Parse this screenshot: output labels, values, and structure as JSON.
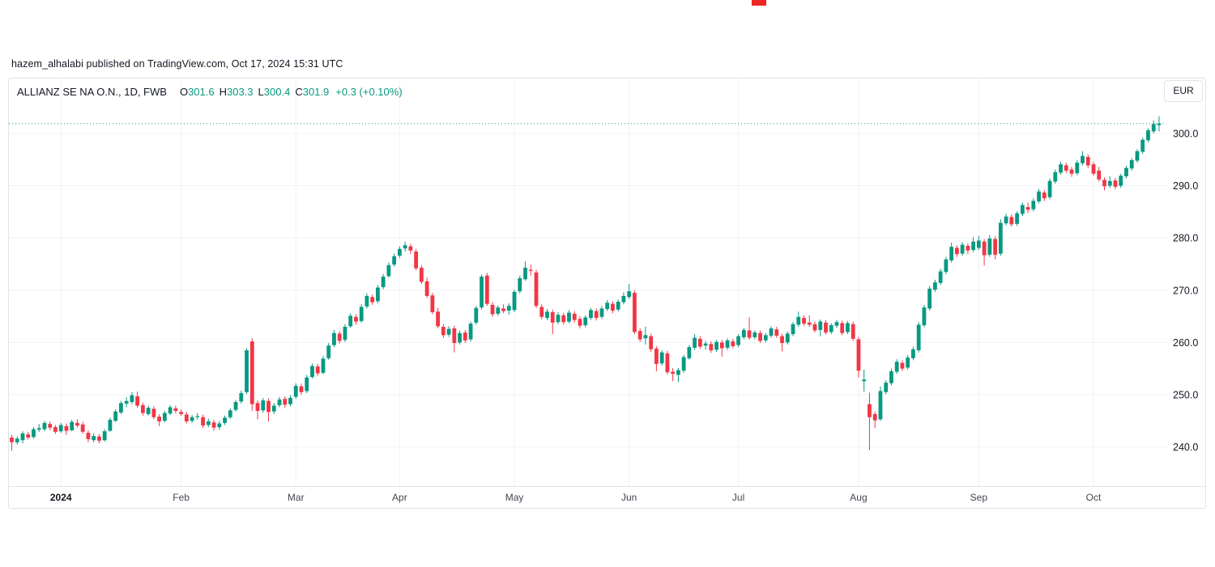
{
  "attribution": "hazem_alhalabi published on TradingView.com, Oct 17, 2024 15:31 UTC",
  "legend": {
    "symbol": "ALLIANZ SE NA O.N., 1D, FWB",
    "open_label": "O",
    "open": "301.6",
    "high_label": "H",
    "high": "303.3",
    "low_label": "L",
    "low": "300.4",
    "close_label": "C",
    "close": "301.9",
    "change": "+0.3 (+0.10%)"
  },
  "currency_button": "EUR",
  "colors": {
    "up": "#089981",
    "down": "#f23645",
    "grid": "#f0f3fa",
    "border": "#e0e3eb",
    "text": "#131722",
    "muted": "#434651",
    "current_price_line": "#089981",
    "top_marker": "#ee2724"
  },
  "chart_data": {
    "type": "candlestick",
    "title": "ALLIANZ SE NA O.N., 1D, FWB",
    "interval": "1D",
    "exchange": "FWB",
    "currency": "EUR",
    "current_price": 301.9,
    "last_ohlc": {
      "open": 301.6,
      "high": 303.3,
      "low": 300.4,
      "close": 301.9
    },
    "price_axis_ticks": [
      300,
      290,
      280,
      270,
      260,
      250,
      240
    ],
    "price_axis_labels": [
      "300.0",
      "290.0",
      "280.0",
      "270.0",
      "260.0",
      "250.0",
      "240.0"
    ],
    "ylim": [
      236,
      305
    ],
    "grid": true,
    "time_axis": [
      {
        "label": "2024",
        "index": 9,
        "bold": true
      },
      {
        "label": "Feb",
        "index": 31
      },
      {
        "label": "Mar",
        "index": 52
      },
      {
        "label": "Apr",
        "index": 71
      },
      {
        "label": "May",
        "index": 92
      },
      {
        "label": "Jun",
        "index": 113
      },
      {
        "label": "Jul",
        "index": 133
      },
      {
        "label": "Aug",
        "index": 155
      },
      {
        "label": "Sep",
        "index": 177
      },
      {
        "label": "Oct",
        "index": 198
      }
    ],
    "candles_ohlc_format": [
      "open",
      "high",
      "low",
      "close"
    ],
    "candles": [
      [
        241.8,
        242.3,
        239.3,
        240.9
      ],
      [
        240.9,
        242.0,
        240.5,
        241.6
      ],
      [
        241.3,
        243.0,
        240.7,
        242.6
      ],
      [
        242.4,
        242.9,
        241.4,
        241.8
      ],
      [
        241.9,
        243.8,
        241.6,
        243.4
      ],
      [
        243.3,
        244.4,
        242.9,
        243.6
      ],
      [
        243.4,
        245.0,
        243.0,
        244.6
      ],
      [
        244.4,
        244.9,
        243.2,
        243.7
      ],
      [
        243.8,
        244.2,
        242.5,
        242.9
      ],
      [
        243.0,
        244.6,
        242.7,
        244.2
      ],
      [
        244.0,
        244.5,
        242.3,
        243.1
      ],
      [
        243.2,
        245.2,
        243.0,
        244.8
      ],
      [
        244.6,
        245.3,
        243.7,
        244.1
      ],
      [
        244.3,
        244.8,
        242.5,
        242.9
      ],
      [
        242.7,
        243.2,
        240.9,
        241.5
      ],
      [
        241.3,
        242.6,
        240.9,
        242.1
      ],
      [
        242.0,
        242.5,
        240.7,
        241.2
      ],
      [
        241.3,
        243.4,
        241.0,
        243.0
      ],
      [
        243.1,
        245.6,
        242.9,
        245.2
      ],
      [
        245.0,
        247.2,
        244.8,
        246.8
      ],
      [
        246.6,
        248.8,
        246.3,
        248.4
      ],
      [
        248.3,
        249.5,
        247.6,
        248.8
      ],
      [
        248.6,
        250.5,
        248.2,
        249.9
      ],
      [
        249.7,
        250.6,
        247.5,
        247.9
      ],
      [
        248.0,
        248.5,
        246.0,
        246.5
      ],
      [
        246.3,
        247.9,
        246.0,
        247.5
      ],
      [
        247.3,
        247.8,
        245.3,
        245.7
      ],
      [
        245.8,
        246.3,
        244.0,
        244.9
      ],
      [
        245.0,
        246.9,
        244.7,
        246.5
      ],
      [
        246.4,
        248.0,
        246.1,
        247.6
      ],
      [
        247.4,
        247.9,
        246.4,
        246.9
      ],
      [
        246.7,
        247.2,
        245.9,
        246.3
      ],
      [
        246.2,
        246.7,
        244.5,
        244.9
      ],
      [
        245.0,
        246.1,
        244.6,
        245.7
      ],
      [
        245.8,
        246.5,
        245.2,
        245.9
      ],
      [
        245.7,
        246.2,
        243.6,
        244.1
      ],
      [
        244.2,
        245.4,
        243.8,
        244.9
      ],
      [
        244.7,
        245.2,
        243.1,
        243.7
      ],
      [
        243.8,
        245.0,
        243.3,
        244.5
      ],
      [
        244.6,
        246.0,
        244.2,
        245.6
      ],
      [
        245.7,
        247.4,
        245.4,
        247.0
      ],
      [
        247.1,
        249.0,
        246.8,
        248.6
      ],
      [
        248.7,
        250.8,
        248.3,
        250.3
      ],
      [
        250.5,
        258.9,
        250.1,
        258.5
      ],
      [
        260.2,
        260.8,
        246.9,
        248.2
      ],
      [
        248.4,
        248.9,
        245.3,
        246.9
      ],
      [
        247.0,
        249.4,
        246.6,
        248.9
      ],
      [
        248.8,
        249.3,
        244.9,
        246.7
      ],
      [
        246.8,
        248.4,
        246.3,
        247.9
      ],
      [
        248.0,
        249.6,
        247.6,
        249.1
      ],
      [
        249.2,
        249.7,
        247.5,
        248.1
      ],
      [
        248.2,
        249.9,
        247.8,
        249.4
      ],
      [
        249.6,
        252.2,
        249.2,
        251.7
      ],
      [
        251.6,
        252.1,
        250.0,
        250.5
      ],
      [
        250.7,
        253.8,
        250.3,
        253.3
      ],
      [
        253.4,
        256.0,
        253.1,
        255.5
      ],
      [
        255.4,
        255.9,
        253.6,
        254.1
      ],
      [
        254.2,
        257.4,
        253.9,
        256.9
      ],
      [
        257.0,
        259.9,
        256.7,
        259.4
      ],
      [
        259.5,
        262.4,
        259.1,
        261.8
      ],
      [
        261.7,
        262.2,
        259.8,
        260.3
      ],
      [
        260.5,
        263.5,
        260.1,
        263.0
      ],
      [
        263.1,
        265.6,
        262.8,
        265.1
      ],
      [
        264.9,
        265.4,
        263.4,
        264.0
      ],
      [
        264.1,
        267.3,
        263.8,
        266.8
      ],
      [
        266.9,
        269.4,
        266.5,
        268.9
      ],
      [
        268.7,
        269.2,
        267.2,
        267.7
      ],
      [
        267.9,
        271.0,
        267.5,
        270.5
      ],
      [
        270.6,
        273.1,
        270.2,
        272.6
      ],
      [
        272.7,
        275.3,
        272.4,
        274.8
      ],
      [
        274.9,
        277.0,
        274.5,
        276.5
      ],
      [
        276.6,
        278.4,
        276.2,
        277.9
      ],
      [
        278.0,
        279.3,
        277.4,
        278.6
      ],
      [
        278.4,
        278.9,
        276.9,
        277.6
      ],
      [
        277.4,
        277.9,
        273.8,
        274.2
      ],
      [
        274.3,
        274.8,
        271.2,
        271.6
      ],
      [
        271.7,
        272.4,
        268.5,
        268.9
      ],
      [
        269.0,
        269.5,
        265.4,
        265.8
      ],
      [
        265.9,
        266.6,
        262.7,
        263.1
      ],
      [
        263.0,
        263.5,
        260.9,
        261.4
      ],
      [
        261.5,
        263.1,
        261.1,
        262.6
      ],
      [
        262.7,
        263.2,
        258.1,
        259.9
      ],
      [
        260.0,
        262.3,
        259.6,
        261.8
      ],
      [
        261.9,
        262.4,
        259.9,
        260.4
      ],
      [
        260.6,
        264.0,
        260.2,
        263.6
      ],
      [
        263.8,
        267.0,
        263.4,
        266.6
      ],
      [
        266.7,
        273.0,
        266.3,
        272.6
      ],
      [
        272.8,
        273.3,
        267.0,
        267.4
      ],
      [
        267.2,
        267.7,
        264.9,
        265.4
      ],
      [
        265.5,
        267.1,
        265.1,
        266.7
      ],
      [
        266.5,
        267.3,
        265.6,
        266.0
      ],
      [
        266.1,
        267.5,
        265.3,
        267.0
      ],
      [
        266.2,
        270.1,
        265.8,
        269.7
      ],
      [
        269.8,
        272.8,
        269.4,
        272.3
      ],
      [
        272.1,
        275.5,
        271.8,
        274.3
      ],
      [
        273.9,
        274.9,
        272.8,
        273.7
      ],
      [
        273.4,
        273.9,
        266.6,
        267.0
      ],
      [
        266.8,
        267.3,
        264.4,
        264.9
      ],
      [
        264.7,
        266.4,
        264.3,
        265.9
      ],
      [
        265.8,
        266.3,
        261.6,
        263.8
      ],
      [
        263.9,
        265.8,
        263.5,
        265.3
      ],
      [
        265.2,
        265.7,
        263.4,
        263.9
      ],
      [
        264.0,
        266.2,
        263.7,
        265.7
      ],
      [
        265.5,
        266.0,
        263.8,
        264.3
      ],
      [
        264.5,
        265.0,
        262.7,
        263.2
      ],
      [
        263.3,
        265.2,
        262.9,
        264.8
      ],
      [
        264.7,
        266.6,
        264.3,
        266.2
      ],
      [
        266.0,
        266.5,
        264.2,
        264.7
      ],
      [
        264.9,
        267.0,
        264.5,
        266.5
      ],
      [
        266.4,
        268.1,
        266.0,
        267.6
      ],
      [
        267.4,
        267.9,
        265.6,
        266.1
      ],
      [
        266.3,
        268.2,
        265.9,
        267.8
      ],
      [
        267.7,
        269.6,
        267.3,
        268.9
      ],
      [
        268.7,
        271.2,
        268.3,
        269.8
      ],
      [
        269.5,
        270.0,
        261.6,
        262.0
      ],
      [
        262.2,
        262.7,
        260.1,
        260.6
      ],
      [
        260.8,
        263.0,
        259.6,
        261.4
      ],
      [
        261.2,
        261.7,
        258.2,
        258.7
      ],
      [
        258.8,
        259.3,
        254.5,
        255.9
      ],
      [
        256.0,
        258.5,
        255.6,
        258.1
      ],
      [
        257.9,
        258.4,
        253.9,
        254.3
      ],
      [
        254.4,
        255.1,
        252.6,
        254.0
      ],
      [
        253.8,
        255.1,
        252.4,
        254.7
      ],
      [
        254.6,
        257.6,
        254.2,
        257.2
      ],
      [
        257.0,
        259.5,
        256.7,
        259.1
      ],
      [
        259.0,
        261.6,
        258.6,
        260.9
      ],
      [
        260.7,
        261.2,
        258.8,
        259.2
      ],
      [
        259.4,
        260.3,
        258.6,
        259.8
      ],
      [
        259.7,
        260.2,
        258.0,
        258.5
      ],
      [
        258.6,
        260.5,
        258.2,
        260.1
      ],
      [
        260.0,
        260.5,
        257.3,
        258.9
      ],
      [
        259.0,
        260.8,
        258.6,
        260.4
      ],
      [
        260.2,
        260.7,
        258.9,
        259.3
      ],
      [
        259.5,
        261.6,
        259.1,
        261.2
      ],
      [
        261.0,
        262.8,
        260.6,
        262.4
      ],
      [
        262.3,
        264.8,
        260.5,
        260.9
      ],
      [
        261.0,
        262.3,
        260.6,
        261.9
      ],
      [
        261.8,
        262.3,
        259.9,
        260.3
      ],
      [
        260.4,
        261.8,
        260.0,
        261.4
      ],
      [
        261.3,
        263.1,
        260.9,
        262.7
      ],
      [
        262.5,
        263.0,
        260.9,
        261.3
      ],
      [
        261.2,
        261.7,
        258.3,
        259.9
      ],
      [
        260.0,
        262.1,
        259.6,
        261.7
      ],
      [
        261.6,
        263.9,
        261.2,
        263.5
      ],
      [
        263.4,
        265.9,
        263.0,
        264.9
      ],
      [
        264.7,
        265.2,
        263.2,
        263.6
      ],
      [
        263.8,
        265.2,
        263.0,
        263.4
      ],
      [
        263.5,
        264.0,
        261.9,
        262.3
      ],
      [
        262.4,
        264.4,
        261.2,
        264.0
      ],
      [
        263.8,
        264.3,
        261.5,
        261.9
      ],
      [
        262.0,
        263.7,
        261.6,
        263.3
      ],
      [
        263.2,
        264.3,
        262.8,
        263.9
      ],
      [
        263.7,
        264.2,
        261.4,
        261.8
      ],
      [
        262.0,
        264.1,
        261.6,
        263.7
      ],
      [
        263.5,
        264.0,
        260.3,
        260.7
      ],
      [
        260.6,
        261.1,
        253.3,
        254.6
      ],
      [
        252.6,
        254.8,
        250.6,
        252.9
      ],
      [
        248.2,
        250.4,
        239.4,
        245.7
      ],
      [
        246.3,
        246.8,
        243.6,
        245.1
      ],
      [
        245.3,
        251.6,
        245.0,
        250.7
      ],
      [
        250.5,
        252.8,
        250.1,
        252.3
      ],
      [
        252.2,
        255.0,
        251.8,
        254.5
      ],
      [
        254.4,
        256.8,
        254.0,
        256.3
      ],
      [
        256.1,
        256.6,
        254.5,
        255.0
      ],
      [
        255.2,
        257.6,
        254.8,
        257.1
      ],
      [
        257.0,
        259.2,
        256.6,
        258.7
      ],
      [
        258.5,
        263.9,
        258.1,
        263.4
      ],
      [
        263.3,
        267.2,
        262.9,
        266.7
      ],
      [
        266.5,
        270.8,
        266.1,
        270.3
      ],
      [
        270.1,
        272.0,
        269.7,
        271.5
      ],
      [
        271.4,
        274.1,
        271.0,
        273.6
      ],
      [
        273.5,
        276.4,
        273.1,
        275.9
      ],
      [
        275.7,
        279.1,
        275.3,
        278.3
      ],
      [
        278.1,
        278.6,
        276.4,
        276.9
      ],
      [
        277.0,
        279.2,
        276.6,
        278.7
      ],
      [
        278.5,
        279.0,
        276.9,
        277.6
      ],
      [
        277.7,
        280.2,
        277.3,
        279.3
      ],
      [
        278.1,
        280.4,
        277.7,
        279.5
      ],
      [
        279.3,
        279.8,
        274.7,
        276.7
      ],
      [
        276.8,
        280.6,
        276.4,
        279.9
      ],
      [
        279.8,
        280.3,
        275.9,
        276.8
      ],
      [
        277.0,
        283.6,
        276.6,
        282.9
      ],
      [
        282.8,
        284.6,
        282.4,
        284.1
      ],
      [
        284.0,
        284.5,
        282.2,
        282.6
      ],
      [
        282.7,
        285.1,
        282.3,
        284.7
      ],
      [
        284.6,
        286.8,
        284.2,
        286.3
      ],
      [
        285.9,
        286.8,
        284.8,
        285.4
      ],
      [
        285.5,
        287.6,
        285.1,
        287.1
      ],
      [
        287.0,
        289.4,
        286.6,
        288.9
      ],
      [
        288.7,
        289.2,
        287.1,
        287.6
      ],
      [
        287.8,
        291.4,
        287.4,
        290.9
      ],
      [
        290.8,
        293.1,
        290.4,
        292.6
      ],
      [
        292.5,
        294.6,
        292.1,
        294.1
      ],
      [
        293.9,
        294.4,
        292.4,
        292.9
      ],
      [
        293.1,
        293.6,
        291.7,
        292.3
      ],
      [
        292.4,
        294.9,
        292.0,
        294.4
      ],
      [
        294.3,
        296.6,
        293.9,
        295.7
      ],
      [
        295.5,
        296.0,
        293.4,
        293.9
      ],
      [
        294.1,
        294.6,
        291.9,
        292.3
      ],
      [
        292.9,
        293.6,
        290.8,
        291.2
      ],
      [
        291.1,
        291.6,
        289.1,
        289.9
      ],
      [
        290.0,
        291.8,
        289.6,
        290.9
      ],
      [
        291.0,
        291.5,
        289.3,
        289.8
      ],
      [
        290.0,
        292.3,
        289.6,
        291.9
      ],
      [
        291.8,
        293.8,
        291.4,
        293.4
      ],
      [
        293.3,
        295.3,
        292.9,
        294.9
      ],
      [
        294.8,
        297.0,
        294.4,
        296.6
      ],
      [
        296.5,
        299.2,
        296.1,
        298.8
      ],
      [
        298.7,
        301.0,
        298.3,
        300.6
      ],
      [
        300.4,
        302.5,
        300.0,
        301.8
      ],
      [
        301.6,
        303.3,
        300.4,
        301.9
      ]
    ]
  }
}
